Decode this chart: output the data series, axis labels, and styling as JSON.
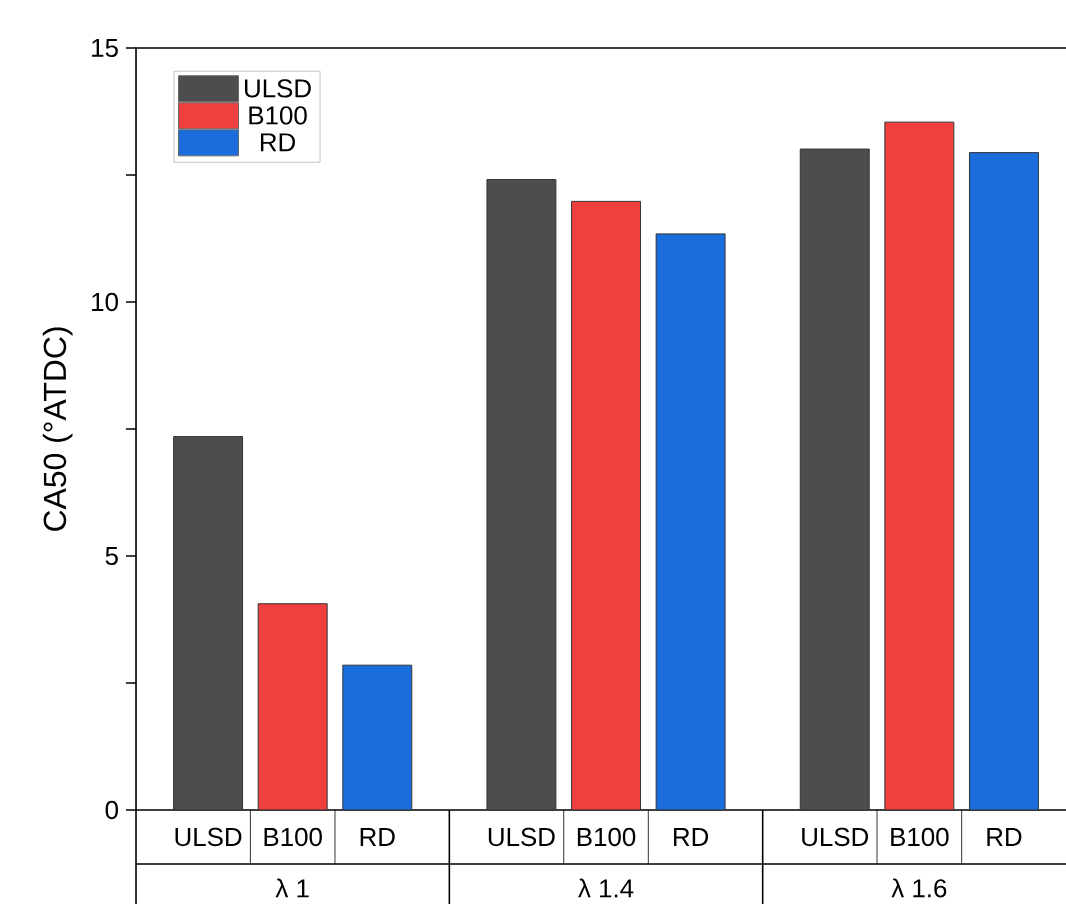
{
  "chart_data": {
    "type": "bar",
    "ylabel": "CA50 (°ATDC)",
    "categories": [
      "λ 1",
      "λ 1.4",
      "λ 1.6"
    ],
    "series": [
      {
        "name": "ULSD",
        "color": "#4d4d4d",
        "values": [
          7.35,
          12.41,
          13.01
        ]
      },
      {
        "name": "B100",
        "color": "#ef3f3f",
        "values": [
          4.06,
          11.98,
          13.54
        ]
      },
      {
        "name": "RD",
        "color": "#1a6ddb",
        "values": [
          2.85,
          11.34,
          12.94
        ]
      }
    ],
    "ylim": [
      0,
      15
    ],
    "yticks": [
      0,
      {
        "value": 2.5,
        "label": null
      },
      5,
      {
        "value": 7.5,
        "label": null
      },
      10,
      {
        "value": 12.5,
        "label": null
      },
      15
    ],
    "legend": "top left",
    "grid": false
  }
}
